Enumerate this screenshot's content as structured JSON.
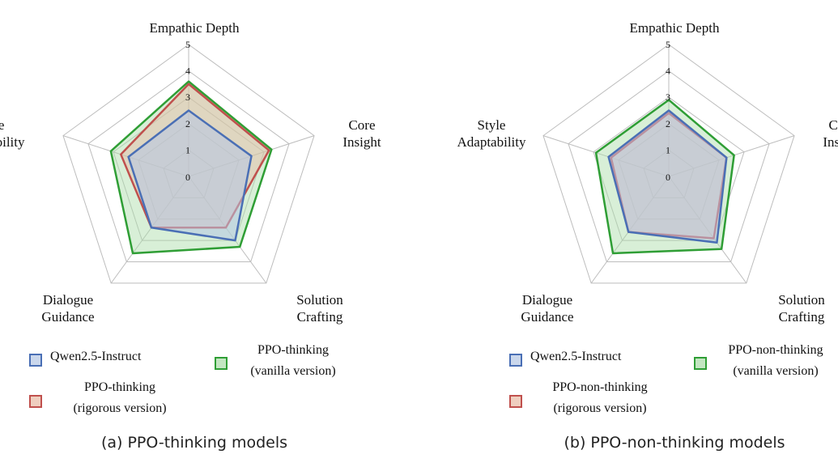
{
  "colors": {
    "qwen_stroke": "#4a6fb5",
    "qwen_fill": "#b4c6e4",
    "rigorous_stroke": "#c0504d",
    "rigorous_fill": "#e8b9a4",
    "vanilla_stroke": "#2f9e35",
    "vanilla_fill": "#a9dca6",
    "grid": "#bdbdbd"
  },
  "chart_data": [
    {
      "type": "radar",
      "caption": "(a) PPO-thinking models",
      "axes": [
        {
          "lines": [
            "Empathic Depth"
          ]
        },
        {
          "lines": [
            "Core",
            "Insight"
          ]
        },
        {
          "lines": [
            "Solution",
            "Crafting"
          ]
        },
        {
          "lines": [
            "Dialogue",
            "Guidance"
          ]
        },
        {
          "lines": [
            "Style",
            "Adaptability"
          ]
        }
      ],
      "range": [
        0,
        5
      ],
      "ticks": [
        "0",
        "1",
        "2",
        "3",
        "4",
        "5"
      ],
      "series": [
        {
          "name": "PPO-thinking (vanilla version)",
          "label_lines": [
            "PPO-thinking",
            "(vanilla version)"
          ],
          "style": "vanilla",
          "values": [
            3.6,
            3.3,
            3.3,
            3.6,
            3.1
          ]
        },
        {
          "name": "PPO-thinking (rigorous version)",
          "label_lines": [
            "PPO-thinking",
            "(rigorous version)"
          ],
          "style": "rigorous",
          "values": [
            3.5,
            3.2,
            2.4,
            2.4,
            2.7
          ]
        },
        {
          "name": "Qwen2.5-Instruct",
          "label_lines": [
            "Qwen2.5-Instruct"
          ],
          "style": "qwen",
          "values": [
            2.5,
            2.5,
            3.0,
            2.4,
            2.4
          ]
        }
      ]
    },
    {
      "type": "radar",
      "caption": "(b) PPO-non-thinking models",
      "axes": [
        {
          "lines": [
            "Empathic Depth"
          ]
        },
        {
          "lines": [
            "Core",
            "Insight"
          ]
        },
        {
          "lines": [
            "Solution",
            "Crafting"
          ]
        },
        {
          "lines": [
            "Dialogue",
            "Guidance"
          ]
        },
        {
          "lines": [
            "Style",
            "Adaptability"
          ]
        }
      ],
      "range": [
        0,
        5
      ],
      "ticks": [
        "0",
        "1",
        "2",
        "3",
        "4",
        "5"
      ],
      "series": [
        {
          "name": "PPO-non-thinking (vanilla version)",
          "label_lines": [
            "PPO-non-thinking",
            "(vanilla version)"
          ],
          "style": "vanilla",
          "values": [
            2.9,
            2.6,
            3.4,
            3.6,
            2.9
          ]
        },
        {
          "name": "PPO-non-thinking (rigorous version)",
          "label_lines": [
            "PPO-non-thinking",
            "(rigorous version)"
          ],
          "style": "rigorous",
          "values": [
            2.4,
            2.3,
            2.9,
            2.6,
            2.3
          ]
        },
        {
          "name": "Qwen2.5-Instruct",
          "label_lines": [
            "Qwen2.5-Instruct"
          ],
          "style": "qwen",
          "values": [
            2.5,
            2.3,
            3.1,
            2.6,
            2.4
          ]
        }
      ]
    }
  ]
}
